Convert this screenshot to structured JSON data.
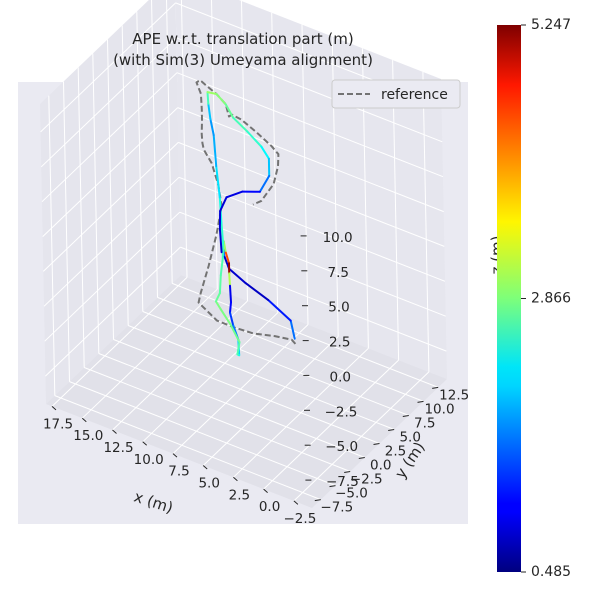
{
  "chart_data": {
    "type": "line",
    "projection": "3d",
    "title": "APE w.r.t. translation part (m)",
    "subtitle": "(with Sim(3) Umeyama alignment)",
    "xlabel": "x (m)",
    "ylabel": "y (m)",
    "zlabel": "z (m)",
    "xlim": [
      -4,
      18
    ],
    "ylim": [
      -9,
      14
    ],
    "zlim": [
      -9.5,
      12
    ],
    "x_ticks": [
      "−2.5",
      "0.0",
      "2.5",
      "5.0",
      "7.5",
      "10.0",
      "12.5",
      "15.0",
      "17.5"
    ],
    "y_ticks": [
      "−7.5",
      "−5.0",
      "−2.5",
      "0.0",
      "2.5",
      "5.0",
      "7.5",
      "10.0",
      "12.5"
    ],
    "z_ticks": [
      "−7.5",
      "−5.0",
      "−2.5",
      "0.0",
      "2.5",
      "5.0",
      "7.5",
      "10.0"
    ],
    "grid": true,
    "legend": {
      "position": "top-right",
      "entries": [
        {
          "label": "reference",
          "style": "dashed",
          "color": "#737373"
        }
      ]
    },
    "colorbar": {
      "colormap": "jet",
      "min": 0.485,
      "max": 5.247,
      "tick_labels": [
        "5.247",
        "2.866",
        "0.485"
      ],
      "tick_values": [
        5.247,
        2.866,
        0.485
      ]
    },
    "series": [
      {
        "name": "reference",
        "style": "dashed",
        "color": "#737373",
        "points": [
          [
            1.2,
            -0.8,
            -2.8
          ],
          [
            1.5,
            -0.8,
            -2.6
          ],
          [
            2.8,
            -1.0,
            -2.7
          ],
          [
            4.5,
            -1.2,
            -3.0
          ],
          [
            6.0,
            -1.4,
            -3.0
          ],
          [
            7.5,
            -1.2,
            -3.1
          ],
          [
            9.0,
            -0.5,
            -2.9
          ],
          [
            9.6,
            0.0,
            -3.0
          ],
          [
            9.9,
            1.0,
            -2.8
          ],
          [
            10.2,
            3.0,
            -1.8
          ],
          [
            10.5,
            5.0,
            -0.5
          ],
          [
            11.0,
            7.0,
            0.6
          ],
          [
            12.0,
            8.5,
            1.2
          ],
          [
            13.0,
            9.5,
            2.0
          ],
          [
            13.8,
            9.8,
            2.6
          ],
          [
            13.5,
            9.0,
            3.5
          ],
          [
            12.8,
            7.5,
            5.0
          ],
          [
            12.0,
            6.0,
            6.8
          ],
          [
            11.5,
            5.0,
            8.2
          ],
          [
            11.8,
            5.5,
            9.0
          ],
          [
            12.5,
            6.2,
            9.3
          ],
          [
            12.0,
            5.8,
            9.8
          ],
          [
            11.0,
            5.0,
            10.0
          ],
          [
            10.0,
            4.5,
            10.0
          ],
          [
            9.0,
            4.0,
            9.8
          ],
          [
            8.5,
            3.5,
            9.3
          ],
          [
            8.0,
            3.0,
            9.8
          ],
          [
            7.0,
            2.5,
            10.0
          ],
          [
            5.5,
            2.0,
            9.8
          ],
          [
            4.0,
            1.5,
            9.5
          ],
          [
            3.2,
            1.0,
            9.4
          ],
          [
            3.0,
            0.5,
            8.8
          ],
          [
            3.3,
            0.3,
            7.5
          ],
          [
            4.3,
            0.2,
            6.0
          ],
          [
            5.0,
            0.2,
            5.5
          ]
        ]
      },
      {
        "name": "estimate",
        "style": "solid",
        "colormap": "jet",
        "points": [
          [
            1.3,
            -0.7,
            -2.5,
            1.6
          ],
          [
            1.6,
            -0.7,
            -1.3,
            1.6
          ],
          [
            3.5,
            -0.6,
            -0.5,
            0.8
          ],
          [
            5.5,
            -0.3,
            -0.1,
            0.8
          ],
          [
            7.0,
            0.0,
            0.3,
            0.9
          ],
          [
            7.6,
            0.4,
            0.9,
            0.7
          ],
          [
            7.7,
            0.6,
            1.8,
            2.5
          ],
          [
            7.4,
            0.3,
            1.2,
            3.5
          ],
          [
            7.0,
            0.0,
            0.7,
            5.1
          ],
          [
            6.8,
            -0.4,
            0.2,
            5.2
          ],
          [
            6.6,
            -0.7,
            -0.5,
            1.0
          ],
          [
            6.4,
            -1.0,
            -1.5,
            1.0
          ],
          [
            6.7,
            -0.6,
            -2.5,
            1.2
          ],
          [
            6.6,
            -0.3,
            -3.5,
            1.5
          ],
          [
            6.3,
            -0.1,
            -4.5,
            1.8
          ],
          [
            6.6,
            0.6,
            -6.0,
            2.3
          ],
          [
            7.2,
            1.5,
            -6.5,
            2.5
          ],
          [
            8.0,
            3.5,
            -6.7,
            2.8
          ],
          [
            9.5,
            5.0,
            -6.5,
            2.8
          ],
          [
            10.5,
            5.5,
            -6.0,
            2.9
          ],
          [
            10.4,
            4.5,
            -5.0,
            2.8
          ],
          [
            9.8,
            4.0,
            -4.0,
            2.7
          ],
          [
            9.8,
            4.2,
            -2.8,
            2.7
          ],
          [
            9.6,
            4.2,
            -1.5,
            2.6
          ],
          [
            9.6,
            4.3,
            -0.5,
            2.5
          ],
          [
            9.8,
            4.5,
            0.8,
            2.5
          ],
          [
            10.0,
            4.7,
            2.5,
            2.3
          ],
          [
            10.4,
            5.0,
            4.5,
            2.0
          ],
          [
            10.7,
            5.3,
            6.5,
            1.8
          ],
          [
            11.0,
            5.4,
            7.5,
            1.8
          ],
          [
            11.2,
            5.5,
            8.5,
            2.2
          ],
          [
            11.0,
            5.0,
            9.6,
            3.0
          ],
          [
            10.0,
            4.5,
            10.0,
            3.0
          ],
          [
            9.0,
            4.0,
            9.8,
            2.8
          ],
          [
            8.0,
            3.2,
            9.5,
            2.7
          ],
          [
            6.5,
            2.5,
            9.3,
            2.5
          ],
          [
            5.0,
            1.8,
            9.0,
            2.5
          ],
          [
            4.0,
            1.0,
            8.8,
            2.0
          ],
          [
            3.8,
            0.6,
            7.8,
            2.0
          ],
          [
            4.5,
            0.4,
            6.5,
            1.2
          ],
          [
            5.8,
            0.1,
            6.2,
            1.0
          ],
          [
            7.0,
            -0.2,
            5.5,
            0.9
          ],
          [
            7.4,
            -0.5,
            4.5,
            0.9
          ],
          [
            7.2,
            -1.0,
            3.5,
            0.9
          ],
          [
            6.8,
            -1.6,
            2.2,
            0.8
          ]
        ]
      }
    ]
  }
}
